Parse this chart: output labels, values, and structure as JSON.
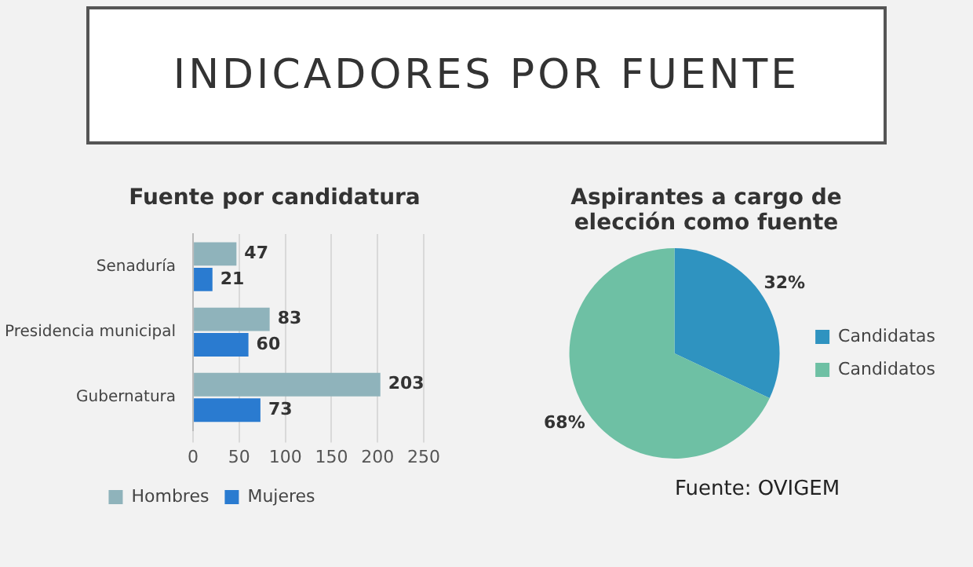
{
  "chart_data": [
    {
      "type": "other",
      "title": "INDICADORES POR FUENTE"
    },
    {
      "type": "bar",
      "title": "Fuente por candidatura",
      "orientation": "horizontal",
      "categories": [
        "Senaduría",
        "Presidencia municipal",
        "Gubernatura"
      ],
      "series": [
        {
          "name": "Hombres",
          "color": "#8fb3bb",
          "values": [
            47,
            83,
            203
          ]
        },
        {
          "name": "Mujeres",
          "color": "#2a7bd0",
          "values": [
            21,
            60,
            73
          ]
        }
      ],
      "xlim": [
        0,
        250
      ],
      "xticks": [
        0,
        50,
        100,
        150,
        200,
        250
      ],
      "grid": "x",
      "legend": "bottom",
      "data_labels": true
    },
    {
      "type": "pie",
      "title": "Aspirantes a cargo de elección como fuente",
      "categories": [
        "Candidatas",
        "Candidatos"
      ],
      "values": [
        32,
        68
      ],
      "colors": [
        "#2f93c0",
        "#6ec0a4"
      ],
      "value_labels": [
        "32%",
        "68%"
      ],
      "legend": "right",
      "annotations": [
        "Fuente: OVIGEM"
      ]
    }
  ]
}
